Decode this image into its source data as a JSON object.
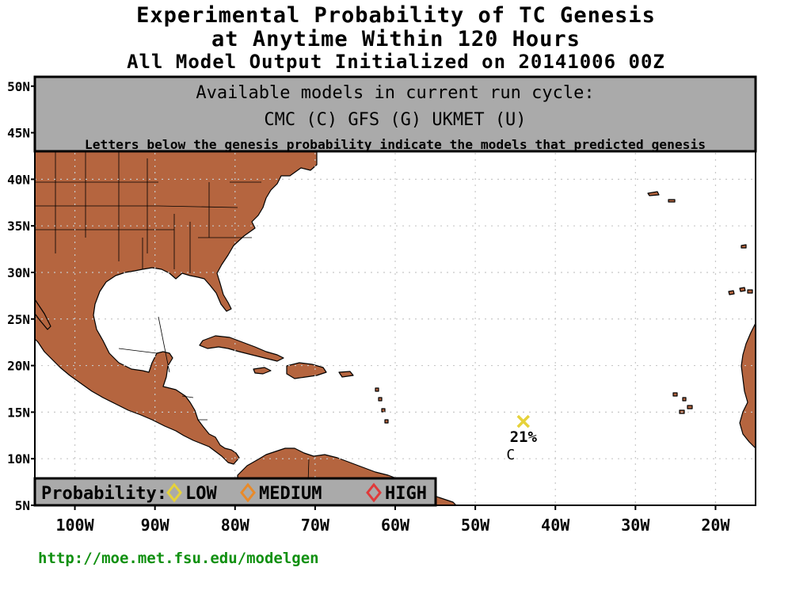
{
  "title": {
    "line1": "Experimental Probability of TC Genesis",
    "line2": "at Anytime Within 120 Hours",
    "line3": "All Model Output Initialized on 20141006 00Z"
  },
  "models_box": {
    "heading": "Available models in current run cycle:",
    "models": "CMC (C) GFS (G)  UKMET (U)",
    "note": "Letters below the genesis probability indicate the models that predicted genesis"
  },
  "legend": {
    "label": "Probability:",
    "items": [
      {
        "label": "LOW",
        "color": "#e6d23a"
      },
      {
        "label": "MEDIUM",
        "color": "#e88a2a"
      },
      {
        "label": "HIGH",
        "color": "#e03a3a"
      }
    ]
  },
  "map": {
    "lon_range": [
      -105,
      -15
    ],
    "lat_range": [
      5,
      51
    ],
    "land_color": "#b5653f",
    "x_ticks": [
      {
        "lon": -100,
        "label": "100W"
      },
      {
        "lon": -90,
        "label": "90W"
      },
      {
        "lon": -80,
        "label": "80W"
      },
      {
        "lon": -70,
        "label": "70W"
      },
      {
        "lon": -60,
        "label": "60W"
      },
      {
        "lon": -50,
        "label": "50W"
      },
      {
        "lon": -40,
        "label": "40W"
      },
      {
        "lon": -30,
        "label": "30W"
      },
      {
        "lon": -20,
        "label": "20W"
      }
    ],
    "y_ticks": [
      {
        "lat": 50,
        "label": "50N"
      },
      {
        "lat": 45,
        "label": "45N"
      },
      {
        "lat": 40,
        "label": "40N"
      },
      {
        "lat": 35,
        "label": "35N"
      },
      {
        "lat": 30,
        "label": "30N"
      },
      {
        "lat": 25,
        "label": "25N"
      },
      {
        "lat": 20,
        "label": "20N"
      },
      {
        "lat": 15,
        "label": "15N"
      },
      {
        "lat": 10,
        "label": "10N"
      },
      {
        "lat": 5,
        "label": "5N"
      }
    ],
    "genesis_points": [
      {
        "lon": -44,
        "lat": 14,
        "probability": "21%",
        "models": "C",
        "color": "#e6d23a"
      }
    ]
  },
  "footer": {
    "url": "http://moe.met.fsu.edu/modelgen",
    "color": "#109010"
  }
}
